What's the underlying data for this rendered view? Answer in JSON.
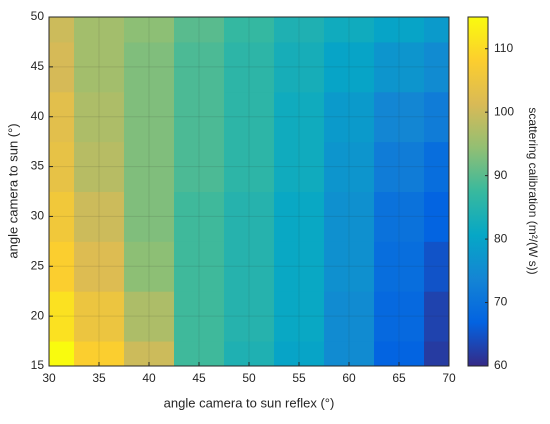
{
  "chart_data": {
    "type": "heatmap",
    "xlabel": "angle camera to sun reflex (°)",
    "ylabel": "angle camera to sun (°)",
    "colorbar_label": "scattering calibration (m²/(W s))",
    "colormap": "parula",
    "x": [
      30,
      35,
      40,
      45,
      50,
      55,
      60,
      65,
      70
    ],
    "y": [
      15,
      20,
      25,
      30,
      35,
      40,
      45,
      50
    ],
    "z": [
      [
        115,
        108,
        100,
        88,
        84,
        80,
        75,
        67,
        62
      ],
      [
        111,
        105,
        97,
        88,
        85,
        81,
        75,
        68,
        63
      ],
      [
        108,
        102,
        94,
        88,
        85,
        81,
        76,
        69,
        65
      ],
      [
        106,
        100,
        93,
        88,
        85,
        81,
        76,
        70,
        67
      ],
      [
        104,
        98,
        93,
        89,
        86,
        82,
        77,
        72,
        69
      ],
      [
        103,
        97,
        93,
        89,
        86,
        82,
        78,
        74,
        72
      ],
      [
        101,
        96,
        93,
        89,
        86,
        83,
        80,
        77,
        75
      ],
      [
        100,
        96,
        94,
        90,
        87,
        84,
        82,
        80,
        78
      ]
    ],
    "xlim": [
      30,
      70
    ],
    "xticks": [
      30,
      35,
      40,
      45,
      50,
      55,
      60,
      65,
      70
    ],
    "ylim": [
      15,
      50
    ],
    "yticks": [
      15,
      20,
      25,
      30,
      35,
      40,
      45,
      50
    ],
    "clim": [
      60,
      115
    ],
    "cticks": [
      60,
      70,
      80,
      90,
      100,
      110
    ],
    "grid": true
  }
}
